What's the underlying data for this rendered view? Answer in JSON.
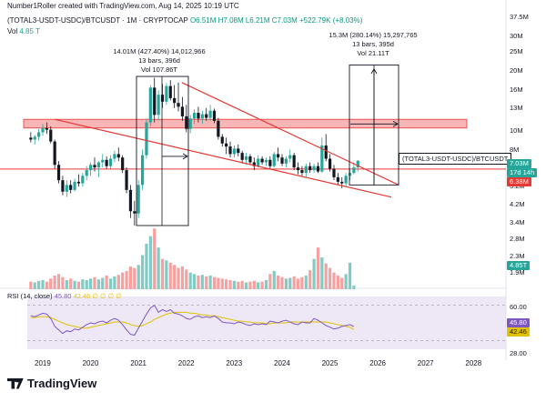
{
  "header": {
    "credit": "Number1Roller created with TradingView.com, Aug 14, 2025 10:19 UTC",
    "symbol": "(TOTAL3-USDT-USDC)/BTCUSDT · 1M · CRYPTOCAP",
    "ohlc": "O6.51M H7.08M L6.21M C7.03M +522.79K (+8.03%)",
    "vol_label": "Vol",
    "vol_value": "4.85 T"
  },
  "annotations": {
    "left_move": "14.01M (427.40%) 14,012,966",
    "left_bars": "13 bars, 396d",
    "left_vol": "Vol 107.86T",
    "right_move": "15.3M (280.14%) 15,297,765",
    "right_bars": "13 bars, 395d",
    "right_vol": "Vol 21.11T"
  },
  "symbol_label": "(TOTAL3-USDT-USDC)/BTCUSDT",
  "price_tags": {
    "last": "7.03M",
    "countdown": "17d 14h",
    "level": "6.38M",
    "volume": "4.85T",
    "rsi": "45.80",
    "rsi_ma": "42.46"
  },
  "rsi_header": {
    "label": "RSI (14, close)",
    "value": "45.80",
    "extra": "42.46 ∅ ∅ ∅ ∅"
  },
  "footer": {
    "brand": "TradingView"
  },
  "colors": {
    "up": "#26a69a",
    "down": "#ef5350",
    "resistance_zone": "#f7a9a9",
    "trend_line": "#e53935",
    "rsi_line": "#7e57c2",
    "rsi_ma": "#e0c200"
  },
  "chart_data": {
    "type": "candlestick",
    "y_scale": "log",
    "price_axis_ticks": [
      "37.5M",
      "30M",
      "25M",
      "20M",
      "16M",
      "13M",
      "10M",
      "8M",
      "6.5M",
      "5.2M",
      "4.2M",
      "3.4M",
      "2.8M",
      "2.3M",
      "1.9M"
    ],
    "rsi_axis_ticks": [
      "60.00",
      "28.00"
    ],
    "x_ticks": [
      "2019",
      "2020",
      "2021",
      "2022",
      "2023",
      "2024",
      "2025",
      "2026",
      "2027",
      "2028"
    ],
    "ohlc": [
      {
        "t": "2018-10",
        "o": 9.2,
        "h": 9.8,
        "l": 8.7,
        "c": 9.0
      },
      {
        "t": "2018-11",
        "o": 9.0,
        "h": 9.5,
        "l": 8.5,
        "c": 9.3
      },
      {
        "t": "2018-12",
        "o": 9.3,
        "h": 10.2,
        "l": 8.9,
        "c": 9.8
      },
      {
        "t": "2019-01",
        "o": 9.8,
        "h": 10.8,
        "l": 9.4,
        "c": 10.3
      },
      {
        "t": "2019-02",
        "o": 10.3,
        "h": 11.0,
        "l": 9.6,
        "c": 10.1
      },
      {
        "t": "2019-03",
        "o": 10.1,
        "h": 10.5,
        "l": 8.6,
        "c": 8.8
      },
      {
        "t": "2019-04",
        "o": 8.8,
        "h": 9.0,
        "l": 6.4,
        "c": 6.7
      },
      {
        "t": "2019-05",
        "o": 6.7,
        "h": 7.0,
        "l": 5.4,
        "c": 5.6
      },
      {
        "t": "2019-06",
        "o": 5.6,
        "h": 5.9,
        "l": 4.7,
        "c": 4.9
      },
      {
        "t": "2019-07",
        "o": 4.9,
        "h": 5.6,
        "l": 4.6,
        "c": 5.3
      },
      {
        "t": "2019-08",
        "o": 5.3,
        "h": 5.6,
        "l": 4.8,
        "c": 5.0
      },
      {
        "t": "2019-09",
        "o": 5.0,
        "h": 5.7,
        "l": 4.9,
        "c": 5.5
      },
      {
        "t": "2019-10",
        "o": 5.5,
        "h": 6.0,
        "l": 5.2,
        "c": 5.4
      },
      {
        "t": "2019-11",
        "o": 5.4,
        "h": 6.1,
        "l": 5.2,
        "c": 5.9
      },
      {
        "t": "2019-12",
        "o": 5.9,
        "h": 6.6,
        "l": 5.6,
        "c": 6.3
      },
      {
        "t": "2020-01",
        "o": 6.3,
        "h": 6.9,
        "l": 5.9,
        "c": 6.7
      },
      {
        "t": "2020-02",
        "o": 6.7,
        "h": 7.3,
        "l": 6.2,
        "c": 6.5
      },
      {
        "t": "2020-03",
        "o": 6.5,
        "h": 7.0,
        "l": 5.8,
        "c": 6.9
      },
      {
        "t": "2020-04",
        "o": 6.9,
        "h": 7.6,
        "l": 6.5,
        "c": 7.1
      },
      {
        "t": "2020-05",
        "o": 7.1,
        "h": 7.4,
        "l": 6.4,
        "c": 6.6
      },
      {
        "t": "2020-06",
        "o": 6.6,
        "h": 7.5,
        "l": 6.4,
        "c": 7.2
      },
      {
        "t": "2020-07",
        "o": 7.2,
        "h": 7.9,
        "l": 6.9,
        "c": 7.6
      },
      {
        "t": "2020-08",
        "o": 7.6,
        "h": 8.2,
        "l": 7.0,
        "c": 7.3
      },
      {
        "t": "2020-09",
        "o": 7.3,
        "h": 7.5,
        "l": 6.1,
        "c": 6.3
      },
      {
        "t": "2020-10",
        "o": 6.3,
        "h": 6.5,
        "l": 4.8,
        "c": 5.0
      },
      {
        "t": "2020-11",
        "o": 5.0,
        "h": 5.3,
        "l": 3.6,
        "c": 3.9
      },
      {
        "t": "2020-12",
        "o": 3.9,
        "h": 4.4,
        "l": 3.3,
        "c": 3.8
      },
      {
        "t": "2021-01",
        "o": 3.8,
        "h": 5.6,
        "l": 3.6,
        "c": 5.3
      },
      {
        "t": "2021-02",
        "o": 5.3,
        "h": 8.0,
        "l": 5.0,
        "c": 7.5
      },
      {
        "t": "2021-03",
        "o": 7.5,
        "h": 11.5,
        "l": 7.2,
        "c": 11.0
      },
      {
        "t": "2021-04",
        "o": 11.0,
        "h": 17.0,
        "l": 10.5,
        "c": 16.5
      },
      {
        "t": "2021-05",
        "o": 16.5,
        "h": 18.5,
        "l": 11.0,
        "c": 12.0
      },
      {
        "t": "2021-06",
        "o": 12.0,
        "h": 16.0,
        "l": 11.2,
        "c": 15.2
      },
      {
        "t": "2021-07",
        "o": 15.2,
        "h": 17.2,
        "l": 13.0,
        "c": 14.0
      },
      {
        "t": "2021-08",
        "o": 14.0,
        "h": 17.4,
        "l": 13.5,
        "c": 16.8
      },
      {
        "t": "2021-09",
        "o": 16.8,
        "h": 18.0,
        "l": 14.2,
        "c": 14.6
      },
      {
        "t": "2021-10",
        "o": 14.6,
        "h": 17.0,
        "l": 13.0,
        "c": 13.8
      },
      {
        "t": "2021-11",
        "o": 13.8,
        "h": 17.5,
        "l": 12.5,
        "c": 13.2
      },
      {
        "t": "2021-12",
        "o": 13.2,
        "h": 14.8,
        "l": 11.2,
        "c": 11.8
      },
      {
        "t": "2022-01",
        "o": 11.8,
        "h": 13.5,
        "l": 9.8,
        "c": 10.2
      },
      {
        "t": "2022-02",
        "o": 10.2,
        "h": 12.0,
        "l": 9.7,
        "c": 11.5
      },
      {
        "t": "2022-03",
        "o": 11.5,
        "h": 12.8,
        "l": 10.8,
        "c": 12.3
      },
      {
        "t": "2022-04",
        "o": 12.3,
        "h": 13.2,
        "l": 11.0,
        "c": 11.5
      },
      {
        "t": "2022-05",
        "o": 11.5,
        "h": 12.6,
        "l": 10.8,
        "c": 12.1
      },
      {
        "t": "2022-06",
        "o": 12.1,
        "h": 13.0,
        "l": 11.2,
        "c": 11.6
      },
      {
        "t": "2022-07",
        "o": 11.6,
        "h": 13.5,
        "l": 11.2,
        "c": 12.6
      },
      {
        "t": "2022-08",
        "o": 12.6,
        "h": 12.9,
        "l": 10.9,
        "c": 11.2
      },
      {
        "t": "2022-09",
        "o": 11.2,
        "h": 11.6,
        "l": 9.0,
        "c": 9.3
      },
      {
        "t": "2022-10",
        "o": 9.3,
        "h": 9.6,
        "l": 8.3,
        "c": 8.6
      },
      {
        "t": "2022-11",
        "o": 8.6,
        "h": 9.2,
        "l": 7.6,
        "c": 8.3
      },
      {
        "t": "2022-12",
        "o": 8.3,
        "h": 8.8,
        "l": 7.3,
        "c": 7.6
      },
      {
        "t": "2023-01",
        "o": 7.6,
        "h": 8.4,
        "l": 7.3,
        "c": 8.1
      },
      {
        "t": "2023-02",
        "o": 8.1,
        "h": 8.5,
        "l": 7.4,
        "c": 7.7
      },
      {
        "t": "2023-03",
        "o": 7.7,
        "h": 7.9,
        "l": 6.8,
        "c": 7.1
      },
      {
        "t": "2023-04",
        "o": 7.1,
        "h": 7.7,
        "l": 6.7,
        "c": 7.4
      },
      {
        "t": "2023-05",
        "o": 7.4,
        "h": 7.6,
        "l": 6.7,
        "c": 6.9
      },
      {
        "t": "2023-06",
        "o": 6.9,
        "h": 7.3,
        "l": 6.3,
        "c": 6.6
      },
      {
        "t": "2023-07",
        "o": 6.6,
        "h": 7.5,
        "l": 6.5,
        "c": 7.2
      },
      {
        "t": "2023-08",
        "o": 7.2,
        "h": 7.4,
        "l": 6.7,
        "c": 6.9
      },
      {
        "t": "2023-09",
        "o": 6.9,
        "h": 7.3,
        "l": 6.6,
        "c": 7.1
      },
      {
        "t": "2023-10",
        "o": 7.1,
        "h": 7.4,
        "l": 6.4,
        "c": 6.6
      },
      {
        "t": "2023-11",
        "o": 6.6,
        "h": 7.8,
        "l": 6.5,
        "c": 7.6
      },
      {
        "t": "2023-12",
        "o": 7.6,
        "h": 8.2,
        "l": 7.0,
        "c": 7.3
      },
      {
        "t": "2024-01",
        "o": 7.3,
        "h": 7.6,
        "l": 6.6,
        "c": 6.8
      },
      {
        "t": "2024-02",
        "o": 6.8,
        "h": 7.4,
        "l": 6.5,
        "c": 7.2
      },
      {
        "t": "2024-03",
        "o": 7.2,
        "h": 8.0,
        "l": 6.9,
        "c": 7.5
      },
      {
        "t": "2024-04",
        "o": 7.5,
        "h": 7.7,
        "l": 6.3,
        "c": 6.5
      },
      {
        "t": "2024-05",
        "o": 6.5,
        "h": 6.9,
        "l": 6.0,
        "c": 6.3
      },
      {
        "t": "2024-06",
        "o": 6.3,
        "h": 6.6,
        "l": 5.9,
        "c": 6.1
      },
      {
        "t": "2024-07",
        "o": 6.1,
        "h": 6.8,
        "l": 5.8,
        "c": 6.6
      },
      {
        "t": "2024-08",
        "o": 6.6,
        "h": 6.9,
        "l": 6.1,
        "c": 6.3
      },
      {
        "t": "2024-09",
        "o": 6.3,
        "h": 6.8,
        "l": 6.1,
        "c": 6.6
      },
      {
        "t": "2024-10",
        "o": 6.6,
        "h": 6.9,
        "l": 6.1,
        "c": 6.2
      },
      {
        "t": "2024-11",
        "o": 6.2,
        "h": 9.2,
        "l": 6.1,
        "c": 8.4
      },
      {
        "t": "2024-12",
        "o": 8.4,
        "h": 9.6,
        "l": 7.0,
        "c": 7.2
      },
      {
        "t": "2025-01",
        "o": 7.2,
        "h": 7.6,
        "l": 6.2,
        "c": 6.4
      },
      {
        "t": "2025-02",
        "o": 6.4,
        "h": 6.7,
        "l": 5.6,
        "c": 5.8
      },
      {
        "t": "2025-03",
        "o": 5.8,
        "h": 6.1,
        "l": 5.3,
        "c": 5.5
      },
      {
        "t": "2025-04",
        "o": 5.5,
        "h": 5.8,
        "l": 5.1,
        "c": 5.4
      },
      {
        "t": "2025-05",
        "o": 5.4,
        "h": 6.1,
        "l": 5.2,
        "c": 5.9
      },
      {
        "t": "2025-06",
        "o": 5.9,
        "h": 6.4,
        "l": 5.6,
        "c": 6.1
      },
      {
        "t": "2025-07",
        "o": 6.1,
        "h": 6.9,
        "l": 6.0,
        "c": 6.5
      },
      {
        "t": "2025-08",
        "o": 6.51,
        "h": 7.08,
        "l": 6.21,
        "c": 7.03
      }
    ],
    "volume_T": [
      10,
      9,
      11,
      12,
      10,
      14,
      18,
      20,
      16,
      12,
      14,
      11,
      10,
      13,
      12,
      14,
      16,
      13,
      15,
      18,
      14,
      17,
      19,
      22,
      24,
      30,
      28,
      32,
      45,
      60,
      70,
      80,
      55,
      40,
      38,
      35,
      32,
      28,
      30,
      26,
      22,
      20,
      18,
      19,
      17,
      18,
      16,
      15,
      14,
      13,
      12,
      11,
      10,
      11,
      9,
      10,
      11,
      9,
      10,
      12,
      20,
      24,
      18,
      16,
      14,
      15,
      17,
      14,
      16,
      18,
      25,
      40,
      55,
      42,
      34,
      28,
      22,
      18,
      15,
      20,
      35,
      4.85
    ],
    "rsi": [
      58,
      57,
      59,
      61,
      60,
      55,
      46,
      42,
      38,
      41,
      40,
      43,
      42,
      45,
      48,
      50,
      49,
      51,
      52,
      50,
      53,
      55,
      53,
      48,
      42,
      37,
      36,
      44,
      52,
      60,
      67,
      70,
      62,
      65,
      63,
      65,
      61,
      60,
      58,
      55,
      54,
      57,
      58,
      56,
      57,
      56,
      58,
      55,
      51,
      50,
      50,
      49,
      51,
      50,
      48,
      47,
      49,
      48,
      49,
      48,
      52,
      51,
      50,
      52,
      53,
      51,
      49,
      48,
      51,
      50,
      50,
      55,
      53,
      50,
      47,
      45,
      43,
      44,
      46,
      47,
      48,
      45.8
    ],
    "rsi_ma": [
      56,
      56,
      57,
      57,
      57,
      56,
      54,
      52,
      50,
      48,
      47,
      46,
      45,
      44,
      44,
      45,
      46,
      47,
      48,
      49,
      50,
      51,
      51,
      51,
      50,
      48,
      47,
      46,
      47,
      49,
      51,
      54,
      56,
      58,
      60,
      61,
      62,
      62,
      62,
      62,
      61,
      61,
      60,
      59,
      59,
      58,
      58,
      57,
      56,
      55,
      54,
      53,
      52,
      52,
      51,
      51,
      50,
      50,
      50,
      49,
      49,
      50,
      50,
      50,
      50,
      51,
      51,
      51,
      51,
      51,
      51,
      51,
      51,
      51,
      51,
      50,
      49,
      48,
      47,
      46,
      45,
      42.46
    ],
    "rsi_range": [
      20,
      80
    ],
    "horizontal_level": 6.38,
    "resistance_zone": [
      10.3,
      11.4
    ]
  }
}
